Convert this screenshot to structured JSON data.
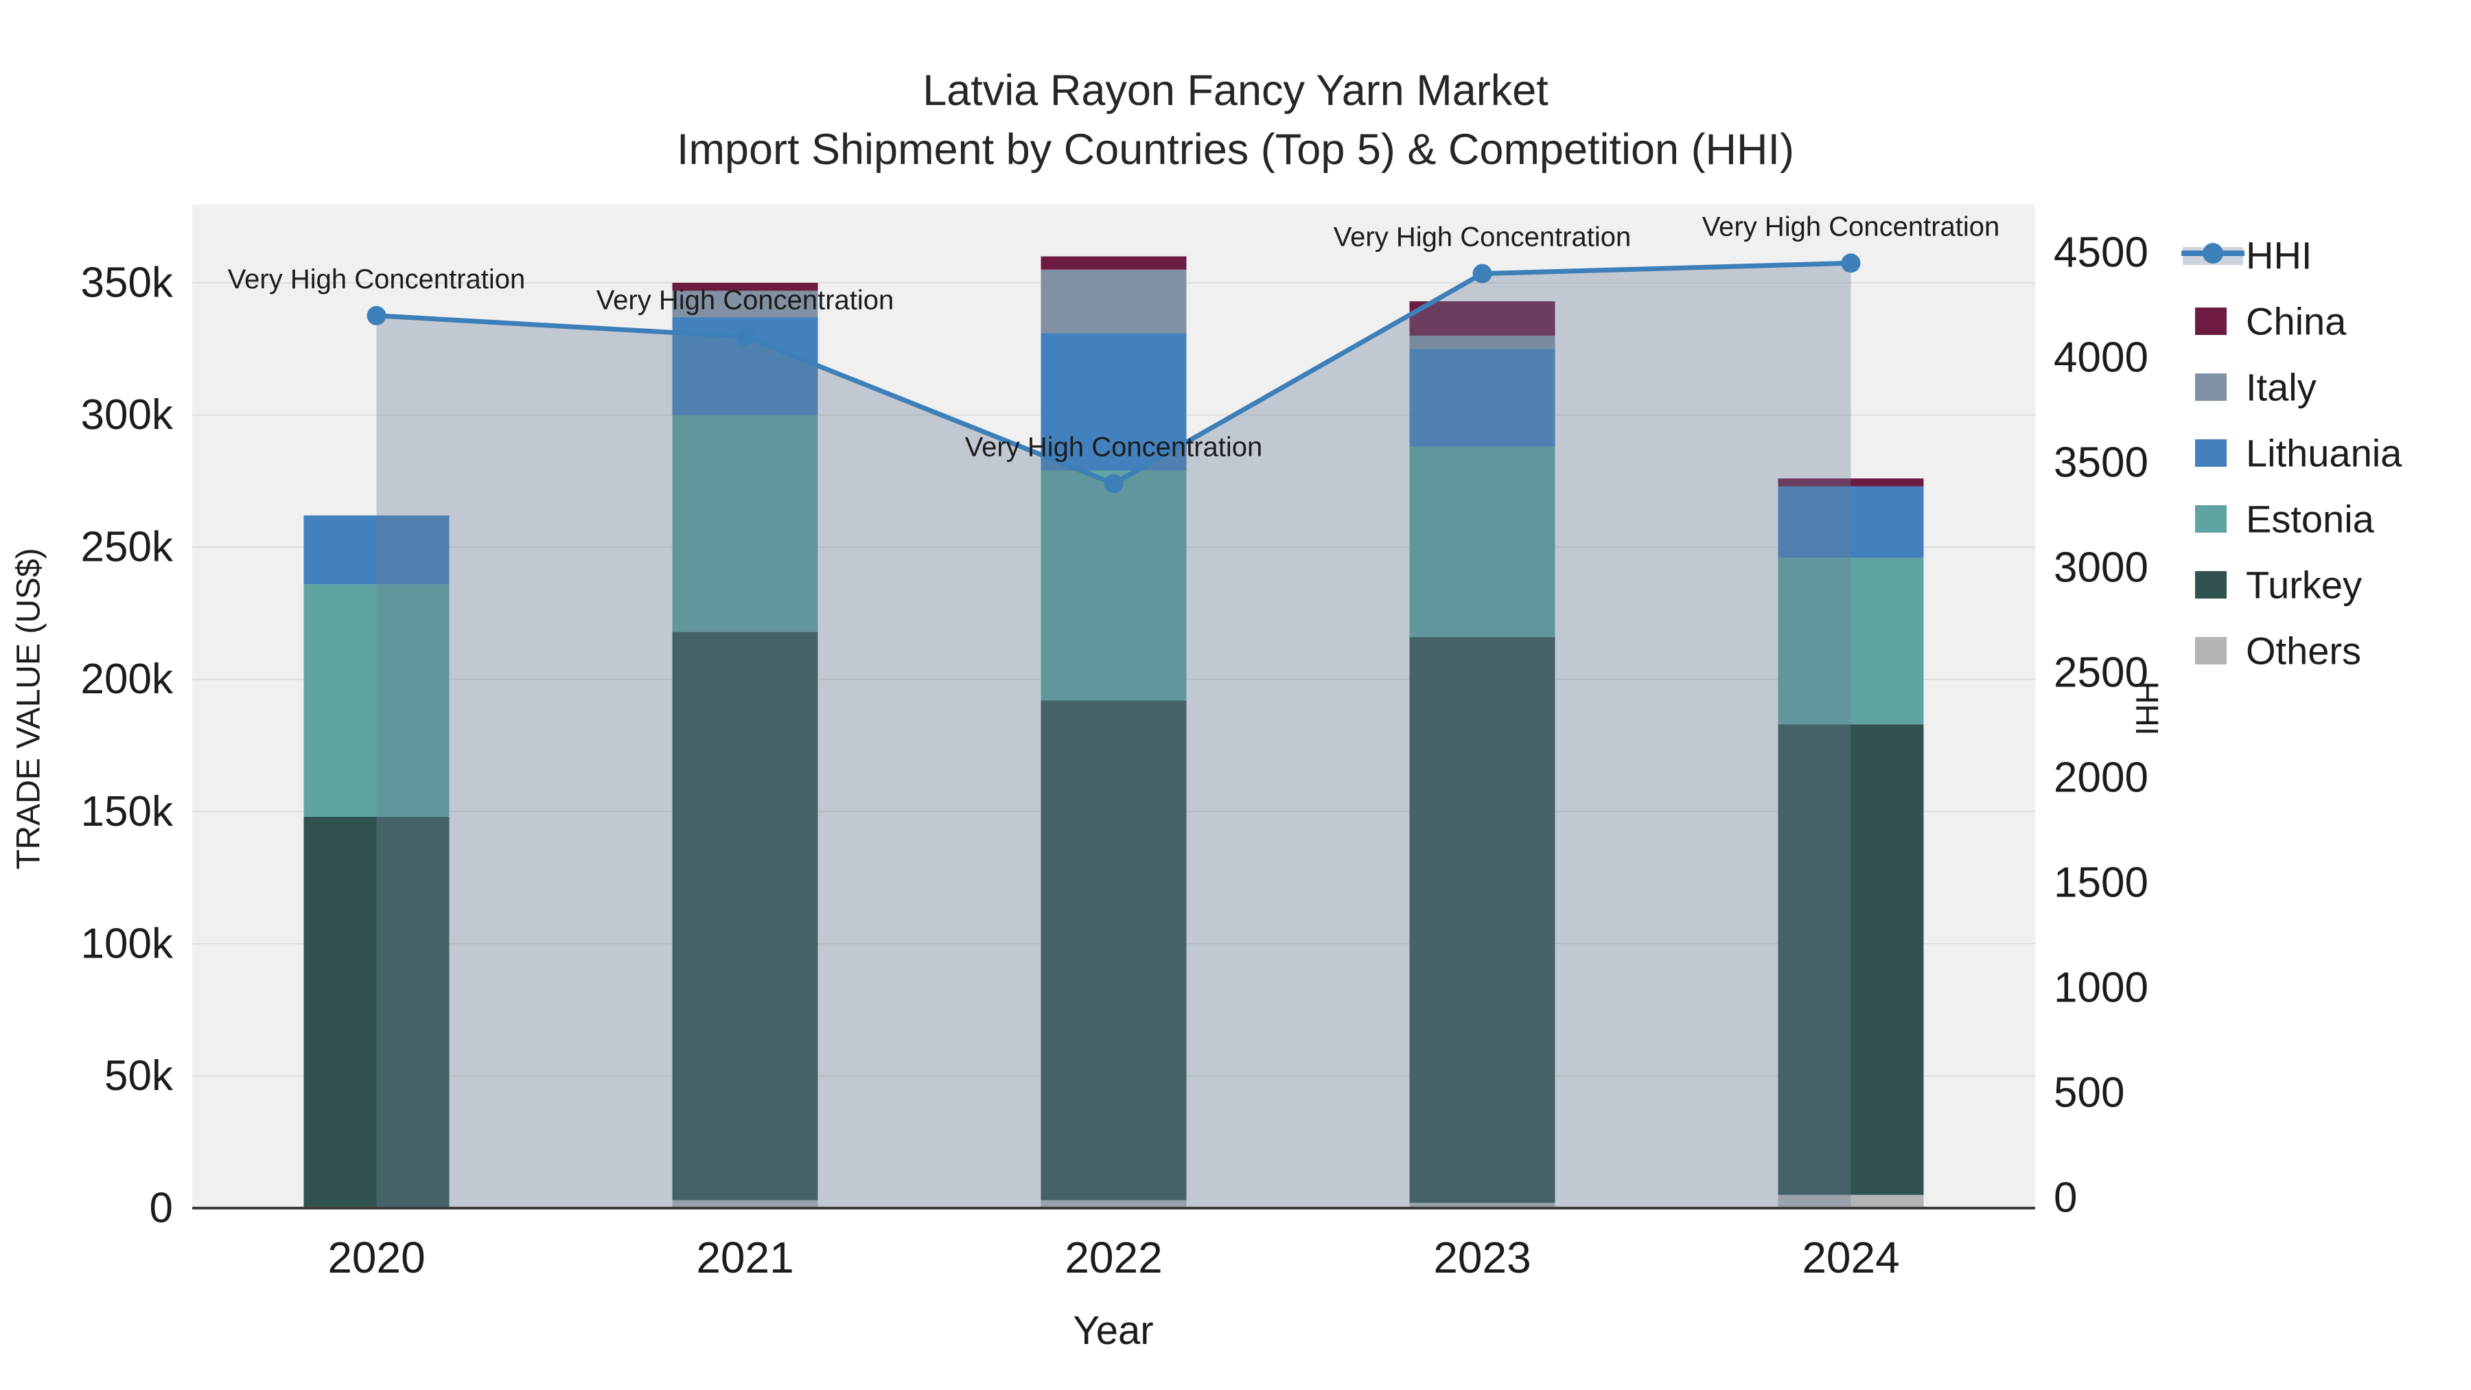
{
  "title": {
    "line1": "Latvia Rayon Fancy Yarn Market",
    "line2": "Import Shipment by Countries (Top 5) & Competition (HHI)"
  },
  "colors": {
    "background": "#ffffff",
    "plot_background": "#f0f0f1",
    "gridline": "#dedede",
    "axis_line": "#3d3d3d",
    "text": "#1c1c1c",
    "hhi_line": "#3d7fb9",
    "hhi_area_fill": "rgba(105,125,150,0.35)",
    "hhi_legend_band": "#cdd3dd",
    "china": "#6E1B42",
    "italy": "#8191A3",
    "lithuania": "#4281BD",
    "estonia": "#5FA4A2",
    "turkey": "#315350",
    "others": "#B3B4B6"
  },
  "legend": {
    "items": [
      {
        "label": "HHI",
        "type": "line",
        "color_key": "hhi_line"
      },
      {
        "label": "China",
        "type": "swatch",
        "color_key": "china"
      },
      {
        "label": "Italy",
        "type": "swatch",
        "color_key": "italy"
      },
      {
        "label": "Lithuania",
        "type": "swatch",
        "color_key": "lithuania"
      },
      {
        "label": "Estonia",
        "type": "swatch",
        "color_key": "estonia"
      },
      {
        "label": "Turkey",
        "type": "swatch",
        "color_key": "turkey"
      },
      {
        "label": "Others",
        "type": "swatch",
        "color_key": "others"
      }
    ]
  },
  "chart_data": {
    "type": "combo-stacked-bar-line",
    "title": "Latvia Rayon Fancy Yarn Market — Import Shipment by Countries (Top 5) & Competition (HHI)",
    "categories": [
      "2020",
      "2021",
      "2022",
      "2023",
      "2024"
    ],
    "xlabel": "Year",
    "y_left": {
      "label": "TRADE VALUE (US$)",
      "tick_labels": [
        "0",
        "50k",
        "100k",
        "150k",
        "200k",
        "250k",
        "300k",
        "350k"
      ],
      "tick_values": [
        0,
        50000,
        100000,
        150000,
        200000,
        250000,
        300000,
        350000
      ],
      "range": [
        0,
        350000
      ],
      "grid": true
    },
    "y_right": {
      "label": "HHI",
      "tick_labels": [
        "0",
        "500",
        "1000",
        "1500",
        "2000",
        "2500",
        "3000",
        "3500",
        "4000",
        "4500"
      ],
      "tick_values": [
        0,
        500,
        1000,
        1500,
        2000,
        2500,
        3000,
        3500,
        4000,
        4500
      ],
      "range": [
        0,
        4500
      ],
      "grid": false
    },
    "bar_series": [
      {
        "name": "Others",
        "color_key": "others",
        "values": [
          0,
          3000,
          3000,
          2000,
          5000
        ]
      },
      {
        "name": "Turkey",
        "color_key": "turkey",
        "values": [
          148000,
          215000,
          189000,
          214000,
          178000
        ]
      },
      {
        "name": "Estonia",
        "color_key": "estonia",
        "values": [
          88000,
          82000,
          87000,
          72000,
          63000
        ]
      },
      {
        "name": "Lithuania",
        "color_key": "lithuania",
        "values": [
          26000,
          37000,
          52000,
          37000,
          27000
        ]
      },
      {
        "name": "Italy",
        "color_key": "italy",
        "values": [
          0,
          10000,
          24000,
          5000,
          0
        ]
      },
      {
        "name": "China",
        "color_key": "china",
        "values": [
          0,
          3000,
          5000,
          13000,
          3000
        ]
      }
    ],
    "bar_totals": [
      262000,
      350000,
      360000,
      343000,
      276000
    ],
    "line_series": {
      "name": "HHI",
      "axis": "right",
      "values": [
        4200,
        4100,
        3400,
        4400,
        4450
      ],
      "marker": "circle",
      "area_fill": true
    },
    "annotations": [
      {
        "text": "Very High Concentration",
        "category": "2020"
      },
      {
        "text": "Very High Concentration",
        "category": "2021"
      },
      {
        "text": "Very High Concentration",
        "category": "2022"
      },
      {
        "text": "Very High Concentration",
        "category": "2023"
      },
      {
        "text": "Very High Concentration",
        "category": "2024"
      }
    ],
    "legend_position": "right",
    "stack_order_bottom_to_top": [
      "Others",
      "Turkey",
      "Estonia",
      "Lithuania",
      "Italy",
      "China"
    ]
  }
}
